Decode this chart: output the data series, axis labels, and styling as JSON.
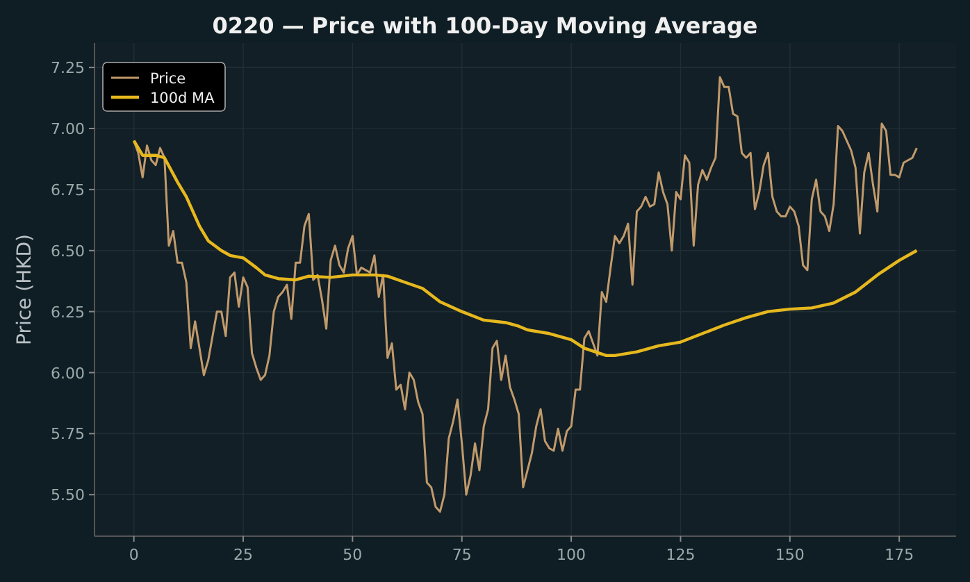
{
  "chart_data": {
    "type": "line",
    "title": "0220 — Price with 100-Day Moving Average",
    "ylabel": "Price (HKD)",
    "xlim": [
      -9,
      188
    ],
    "xticks": [
      0,
      25,
      50,
      75,
      100,
      125,
      150,
      175
    ],
    "ylim": [
      5.33,
      7.35
    ],
    "yticks": [
      {
        "value": 5.5,
        "label": "5.50"
      },
      {
        "value": 5.75,
        "label": "5.75"
      },
      {
        "value": 6,
        "label": "6.00"
      },
      {
        "value": 6.25,
        "label": "6.25"
      },
      {
        "value": 6.5,
        "label": "6.50"
      },
      {
        "value": 6.75,
        "label": "6.75"
      },
      {
        "value": 7,
        "label": "7.00"
      },
      {
        "value": 7.25,
        "label": "7.25"
      }
    ],
    "grid": true,
    "legend": "top left",
    "series": [
      {
        "name": "Price",
        "color": "#c19a6b",
        "x": [
          0,
          1,
          2,
          3,
          4,
          5,
          6,
          7,
          8,
          9,
          10,
          11,
          12,
          13,
          14,
          15,
          16,
          17,
          18,
          19,
          20,
          21,
          22,
          23,
          24,
          25,
          26,
          27,
          28,
          29,
          30,
          31,
          32,
          33,
          34,
          35,
          36,
          37,
          38,
          39,
          40,
          41,
          42,
          43,
          44,
          45,
          46,
          47,
          48,
          49,
          50,
          51,
          52,
          53,
          54,
          55,
          56,
          57,
          58,
          59,
          60,
          61,
          62,
          63,
          64,
          65,
          66,
          67,
          68,
          69,
          70,
          71,
          72,
          73,
          74,
          75,
          76,
          77,
          78,
          79,
          80,
          81,
          82,
          83,
          84,
          85,
          86,
          87,
          88,
          89,
          90,
          91,
          92,
          93,
          94,
          95,
          96,
          97,
          98,
          99,
          100,
          101,
          102,
          103,
          104,
          105,
          106,
          107,
          108,
          109,
          110,
          111,
          112,
          113,
          114,
          115,
          116,
          117,
          118,
          119,
          120,
          121,
          122,
          123,
          124,
          125,
          126,
          127,
          128,
          129,
          130,
          131,
          132,
          133,
          134,
          135,
          136,
          137,
          138,
          139,
          140,
          141,
          142,
          143,
          144,
          145,
          146,
          147,
          148,
          149,
          150,
          151,
          152,
          153,
          154,
          155,
          156,
          157,
          158,
          159,
          160,
          161,
          162,
          163,
          164,
          165,
          166,
          167,
          168,
          169,
          170,
          171,
          172,
          173,
          174,
          175,
          176,
          177,
          178,
          179
        ],
        "values": [
          6.95,
          6.9,
          6.8,
          6.93,
          6.87,
          6.85,
          6.92,
          6.88,
          6.52,
          6.58,
          6.45,
          6.45,
          6.37,
          6.1,
          6.21,
          6.1,
          5.99,
          6.05,
          6.15,
          6.25,
          6.25,
          6.15,
          6.39,
          6.41,
          6.27,
          6.39,
          6.35,
          6.08,
          6.02,
          5.97,
          5.99,
          6.07,
          6.25,
          6.31,
          6.33,
          6.36,
          6.22,
          6.45,
          6.45,
          6.6,
          6.65,
          6.38,
          6.4,
          6.3,
          6.18,
          6.46,
          6.52,
          6.44,
          6.41,
          6.51,
          6.56,
          6.4,
          6.43,
          6.42,
          6.41,
          6.48,
          6.31,
          6.4,
          6.06,
          6.12,
          5.93,
          5.95,
          5.85,
          6,
          5.97,
          5.88,
          5.83,
          5.55,
          5.53,
          5.45,
          5.43,
          5.5,
          5.73,
          5.8,
          5.89,
          5.71,
          5.5,
          5.58,
          5.71,
          5.6,
          5.78,
          5.85,
          6.1,
          6.13,
          5.97,
          6.07,
          5.94,
          5.89,
          5.83,
          5.53,
          5.6,
          5.67,
          5.78,
          5.85,
          5.72,
          5.69,
          5.68,
          5.77,
          5.68,
          5.76,
          5.78,
          5.93,
          5.93,
          6.14,
          6.17,
          6.12,
          6.07,
          6.33,
          6.29,
          6.43,
          6.56,
          6.53,
          6.56,
          6.61,
          6.36,
          6.66,
          6.68,
          6.72,
          6.68,
          6.69,
          6.82,
          6.74,
          6.69,
          6.5,
          6.74,
          6.71,
          6.89,
          6.86,
          6.52,
          6.77,
          6.83,
          6.79,
          6.84,
          6.88,
          7.21,
          7.17,
          7.17,
          7.06,
          7.05,
          6.9,
          6.88,
          6.9,
          6.67,
          6.74,
          6.85,
          6.9,
          6.72,
          6.66,
          6.64,
          6.64,
          6.68,
          6.66,
          6.6,
          6.44,
          6.42,
          6.71,
          6.79,
          6.66,
          6.64,
          6.58,
          6.69,
          7.01,
          6.99,
          6.95,
          6.91,
          6.84,
          6.57,
          6.82,
          6.9,
          6.77,
          6.66,
          7.02,
          6.99,
          6.81,
          6.81,
          6.8,
          6.86,
          6.87,
          6.88,
          6.92
        ]
      },
      {
        "name": "100d MA",
        "color": "#e6b81e",
        "x": [
          0,
          2,
          5,
          7,
          10,
          12,
          15,
          17,
          20,
          22,
          25,
          28,
          30,
          33,
          37,
          40,
          45,
          50,
          55,
          58,
          62,
          66,
          70,
          75,
          80,
          85,
          88,
          90,
          95,
          100,
          103,
          108,
          110,
          115,
          120,
          125,
          130,
          135,
          140,
          145,
          150,
          155,
          160,
          165,
          170,
          175,
          179
        ],
        "values": [
          6.95,
          6.89,
          6.89,
          6.88,
          6.78,
          6.72,
          6.6,
          6.54,
          6.5,
          6.48,
          6.47,
          6.43,
          6.4,
          6.385,
          6.38,
          6.395,
          6.39,
          6.4,
          6.4,
          6.395,
          6.37,
          6.345,
          6.29,
          6.25,
          6.215,
          6.205,
          6.19,
          6.175,
          6.16,
          6.135,
          6.1,
          6.07,
          6.07,
          6.085,
          6.11,
          6.125,
          6.16,
          6.195,
          6.225,
          6.25,
          6.26,
          6.265,
          6.285,
          6.33,
          6.4,
          6.46,
          6.5
        ]
      }
    ]
  }
}
